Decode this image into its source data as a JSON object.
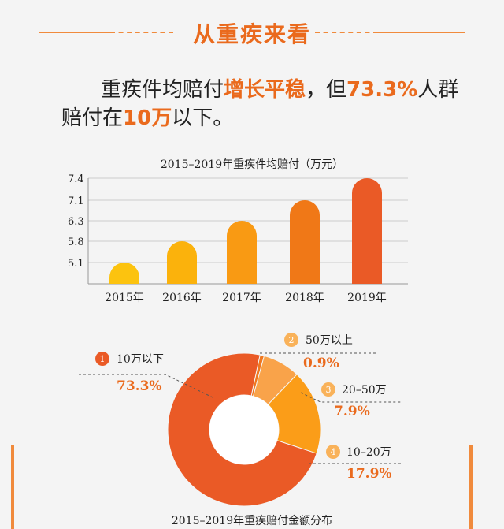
{
  "heading": "从重疾来看",
  "intro": {
    "p1": "重疾件均赔付",
    "p1_hl": "增长平稳",
    "p2": "，但",
    "p2_hl": "73.3%",
    "p3": "人群",
    "p4": "赔付在",
    "p4_hl": "10万",
    "p5": "以下。"
  },
  "chart_data": [
    {
      "type": "bar",
      "title": "2015–2019年重疾件均赔付（万元）",
      "categories": [
        "2015年",
        "2016年",
        "2017年",
        "2018年",
        "2019年"
      ],
      "values": [
        5.1,
        5.8,
        6.3,
        7.1,
        7.4
      ],
      "ytick_labels": [
        "5.1",
        "5.8",
        "6.3",
        "7.1",
        "7.4"
      ],
      "grid": true,
      "colors": [
        "#fcc30f",
        "#fbb20c",
        "#f99a13",
        "#f07817",
        "#ea5a26"
      ]
    },
    {
      "type": "pie",
      "title": "2015–2019年重疾赔付金额分布",
      "slices": [
        {
          "num": "1",
          "label": "10万以下",
          "value": 73.3,
          "text": "73.3%",
          "color": "#ea5a26"
        },
        {
          "num": "2",
          "label": "50万以上",
          "value": 0.9,
          "text": "0.9%",
          "color": "#f07820"
        },
        {
          "num": "3",
          "label": "20–50万",
          "value": 7.9,
          "text": "7.9%",
          "color": "#f9a34a"
        },
        {
          "num": "4",
          "label": "10–20万",
          "value": 17.9,
          "text": "17.9%",
          "color": "#fb9d18"
        }
      ]
    }
  ],
  "colors": {
    "accent": "#ea6a1d",
    "grid": "#cccccc"
  }
}
